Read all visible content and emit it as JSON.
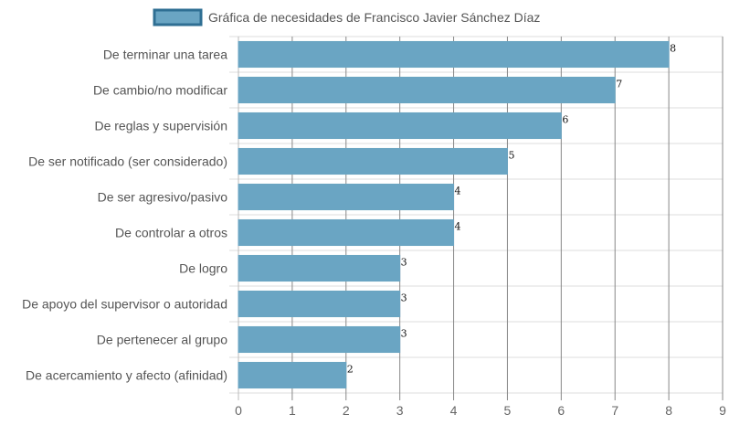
{
  "chart_data": {
    "type": "bar",
    "orientation": "horizontal",
    "categories": [
      "De terminar una tarea",
      "De cambio/no modificar",
      "De reglas y supervisión",
      "De ser notificado (ser considerado)",
      "De ser agresivo/pasivo",
      "De controlar a otros",
      "De logro",
      "De apoyo del supervisor o autoridad",
      "De pertenecer al grupo",
      "De acercamiento y afecto (afinidad)"
    ],
    "series": [
      {
        "name": "Gráfica de necesidades de Francisco Javier Sánchez Díaz",
        "values": [
          8,
          7,
          6,
          5,
          4,
          4,
          3,
          3,
          3,
          2
        ]
      }
    ],
    "xlim": [
      0,
      9
    ],
    "xticks": [
      "0",
      "1",
      "2",
      "3",
      "4",
      "5",
      "6",
      "7",
      "8",
      "9"
    ],
    "data_labels": true,
    "grid": true,
    "legend_position": "top",
    "colors": {
      "bar_fill": "#6aa5c3",
      "bar_stroke": "#2f6f93",
      "grid": "#dddddd",
      "vertical_grid": "#888888"
    }
  }
}
